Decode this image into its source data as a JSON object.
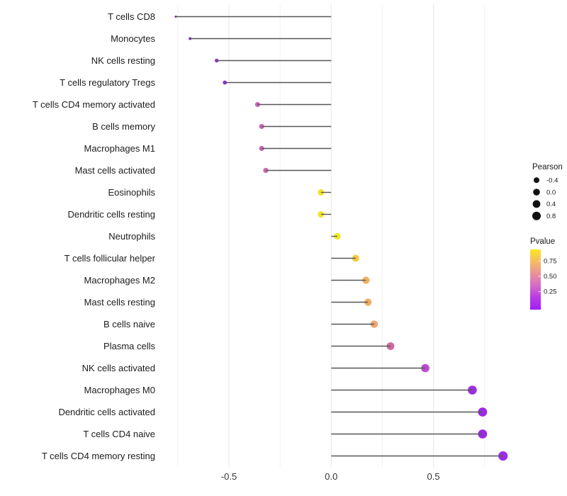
{
  "chart_data": {
    "type": "scatter",
    "subtype": "lollipop",
    "orientation": "horizontal",
    "title": "",
    "xlabel": "",
    "ylabel": "",
    "xlim": [
      -0.85,
      0.92
    ],
    "baseline": 0,
    "grid_values": [
      -0.75,
      -0.5,
      -0.25,
      0,
      0.25,
      0.5,
      0.75
    ],
    "x_ticks": [
      {
        "value": -0.5,
        "label": "-0.5"
      },
      {
        "value": 0.0,
        "label": "0.0"
      },
      {
        "value": 0.5,
        "label": "0.5"
      }
    ],
    "points": [
      {
        "label": "T cells CD8",
        "pearson": -0.76,
        "color": "#7A22C4"
      },
      {
        "label": "Monocytes",
        "pearson": -0.69,
        "color": "#8727D2"
      },
      {
        "label": "NK cells resting",
        "pearson": -0.56,
        "color": "#9434DB"
      },
      {
        "label": "T cells regulatory  Tregs",
        "pearson": -0.52,
        "color": "#8F2BD8"
      },
      {
        "label": "T cells CD4 memory activated",
        "pearson": -0.36,
        "color": "#CA5FBC"
      },
      {
        "label": "B cells memory",
        "pearson": -0.34,
        "color": "#CC63B8"
      },
      {
        "label": "Macrophages M1",
        "pearson": -0.34,
        "color": "#CC63B8"
      },
      {
        "label": "Mast cells activated",
        "pearson": -0.32,
        "color": "#CE6BAD"
      },
      {
        "label": "Eosinophils",
        "pearson": -0.05,
        "color": "#F2E32D"
      },
      {
        "label": "Dendritic cells resting",
        "pearson": -0.05,
        "color": "#F2E32D"
      },
      {
        "label": "Neutrophils",
        "pearson": 0.03,
        "color": "#F4E627"
      },
      {
        "label": "T cells follicular helper",
        "pearson": 0.12,
        "color": "#F2CB42"
      },
      {
        "label": "Macrophages M2",
        "pearson": 0.17,
        "color": "#F1B060"
      },
      {
        "label": "Mast cells resting",
        "pearson": 0.18,
        "color": "#F0AE63"
      },
      {
        "label": "B cells naive",
        "pearson": 0.21,
        "color": "#EFA475"
      },
      {
        "label": "Plasma cells",
        "pearson": 0.29,
        "color": "#CE6B9E"
      },
      {
        "label": "NK cells activated",
        "pearson": 0.46,
        "color": "#BC4BD2"
      },
      {
        "label": "Macrophages M0",
        "pearson": 0.69,
        "color": "#9C2FE0"
      },
      {
        "label": "Dendritic cells activated",
        "pearson": 0.74,
        "color": "#9A2BE2"
      },
      {
        "label": "T cells CD4 naive",
        "pearson": 0.74,
        "color": "#9A2BE2"
      },
      {
        "label": "T cells CD4 memory resting",
        "pearson": 0.84,
        "color": "#9D2BE6"
      }
    ],
    "legend_pearson": {
      "title": "Pearson",
      "entries": [
        {
          "label": "-0.4",
          "value": -0.4
        },
        {
          "label": "0.0",
          "value": 0.0
        },
        {
          "label": "0.4",
          "value": 0.4
        },
        {
          "label": "0.8",
          "value": 0.8
        }
      ]
    },
    "legend_pvalue": {
      "title": "Pvalue",
      "tick_labels": [
        "0.75",
        "0.50",
        "0.25"
      ],
      "gradient": [
        "#FAE722",
        "#F5BC62",
        "#E9929A",
        "#D56CC5",
        "#B83BE3",
        "#A21CF5"
      ]
    },
    "colors": {
      "stick": "#575757",
      "grid_major": "#e7e7e7",
      "grid_minor": "#f2f2f2",
      "axis_text": "#333333",
      "label_text": "#1c1c1c",
      "legend_text": "#1a1a1a",
      "legend_dot": "#111111"
    }
  }
}
